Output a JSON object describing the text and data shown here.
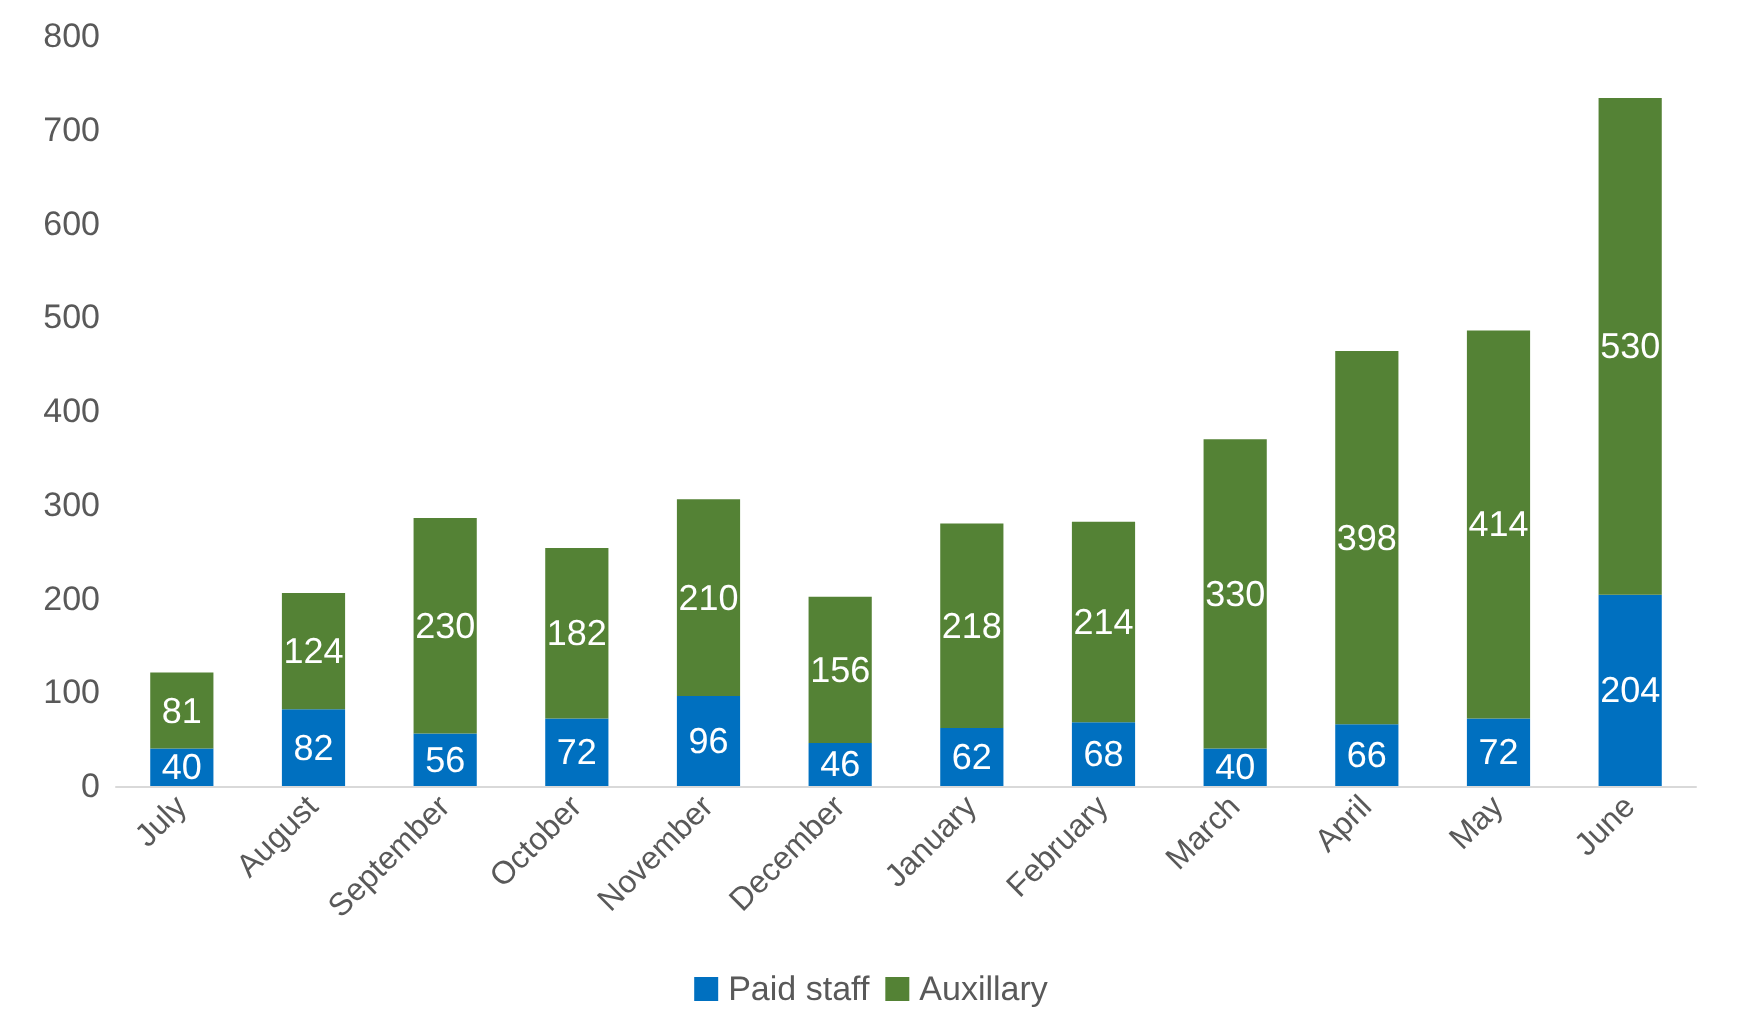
{
  "chart_data": {
    "type": "bar",
    "stacked": true,
    "data_labels": true,
    "legend": "bottom",
    "grid": false,
    "categories": [
      "July",
      "August",
      "September",
      "October",
      "November",
      "December",
      "January",
      "February",
      "March",
      "April",
      "May",
      "June"
    ],
    "series": [
      {
        "name": "Paid staff",
        "color": "#0070c0",
        "values": [
          40,
          82,
          56,
          72,
          96,
          46,
          62,
          68,
          40,
          66,
          72,
          204
        ]
      },
      {
        "name": "Auxillary",
        "color": "#548235",
        "values": [
          81,
          124,
          230,
          182,
          210,
          156,
          218,
          214,
          330,
          398,
          414,
          530
        ]
      }
    ],
    "ylim": [
      0,
      800
    ],
    "yticks": [
      0,
      100,
      200,
      300,
      400,
      500,
      600,
      700,
      800
    ]
  }
}
